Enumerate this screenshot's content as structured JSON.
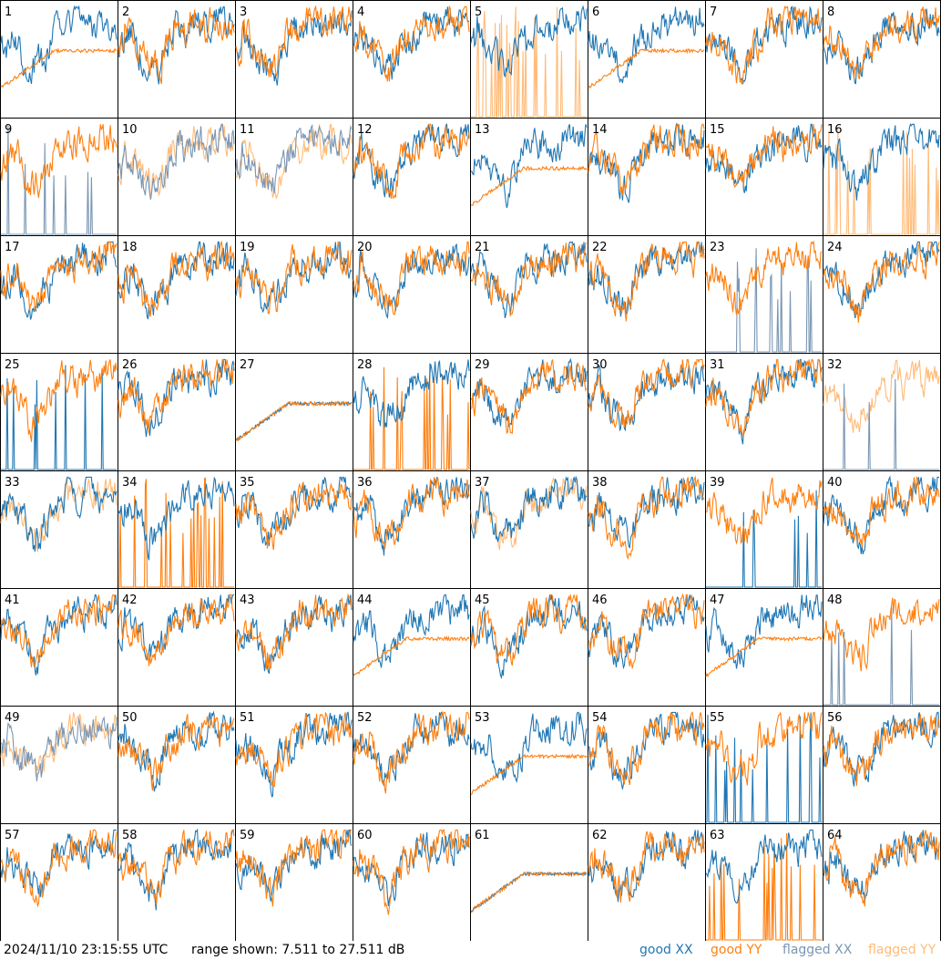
{
  "chart_data": {
    "type": "line",
    "title": "",
    "panel_count": 64,
    "grid": {
      "rows": 8,
      "cols": 8
    },
    "y_range_db": [
      7.511,
      27.511
    ],
    "panels": [
      {
        "n": 1,
        "xx": "good",
        "yy": "good"
      },
      {
        "n": 2,
        "xx": "good",
        "yy": "good"
      },
      {
        "n": 3,
        "xx": "good",
        "yy": "good"
      },
      {
        "n": 4,
        "xx": "good",
        "yy": "good"
      },
      {
        "n": 5,
        "xx": "good",
        "yy": "flagged"
      },
      {
        "n": 6,
        "xx": "good",
        "yy": "good"
      },
      {
        "n": 7,
        "xx": "good",
        "yy": "good"
      },
      {
        "n": 8,
        "xx": "good",
        "yy": "good"
      },
      {
        "n": 9,
        "xx": "flagged",
        "yy": "good"
      },
      {
        "n": 10,
        "xx": "flagged",
        "yy": "flagged"
      },
      {
        "n": 11,
        "xx": "flagged",
        "yy": "flagged"
      },
      {
        "n": 12,
        "xx": "good",
        "yy": "good"
      },
      {
        "n": 13,
        "xx": "good",
        "yy": "good"
      },
      {
        "n": 14,
        "xx": "good",
        "yy": "good"
      },
      {
        "n": 15,
        "xx": "good",
        "yy": "good"
      },
      {
        "n": 16,
        "xx": "good",
        "yy": "flagged"
      },
      {
        "n": 17,
        "xx": "good",
        "yy": "good"
      },
      {
        "n": 18,
        "xx": "good",
        "yy": "good"
      },
      {
        "n": 19,
        "xx": "good",
        "yy": "good"
      },
      {
        "n": 20,
        "xx": "good",
        "yy": "good"
      },
      {
        "n": 21,
        "xx": "good",
        "yy": "good"
      },
      {
        "n": 22,
        "xx": "good",
        "yy": "good"
      },
      {
        "n": 23,
        "xx": "flagged",
        "yy": "good"
      },
      {
        "n": 24,
        "xx": "good",
        "yy": "good"
      },
      {
        "n": 25,
        "xx": "good",
        "yy": "good"
      },
      {
        "n": 26,
        "xx": "good",
        "yy": "good"
      },
      {
        "n": 27,
        "xx": "good",
        "yy": "good"
      },
      {
        "n": 28,
        "xx": "good",
        "yy": "good"
      },
      {
        "n": 29,
        "xx": "good",
        "yy": "good"
      },
      {
        "n": 30,
        "xx": "good",
        "yy": "good"
      },
      {
        "n": 31,
        "xx": "good",
        "yy": "good"
      },
      {
        "n": 32,
        "xx": "flagged",
        "yy": "flagged"
      },
      {
        "n": 33,
        "xx": "good",
        "yy": "flagged"
      },
      {
        "n": 34,
        "xx": "good",
        "yy": "good"
      },
      {
        "n": 35,
        "xx": "good",
        "yy": "good"
      },
      {
        "n": 36,
        "xx": "good",
        "yy": "good"
      },
      {
        "n": 37,
        "xx": "good",
        "yy": "flagged"
      },
      {
        "n": 38,
        "xx": "good",
        "yy": "good"
      },
      {
        "n": 39,
        "xx": "good",
        "yy": "good"
      },
      {
        "n": 40,
        "xx": "good",
        "yy": "good"
      },
      {
        "n": 41,
        "xx": "good",
        "yy": "good"
      },
      {
        "n": 42,
        "xx": "good",
        "yy": "good"
      },
      {
        "n": 43,
        "xx": "good",
        "yy": "good"
      },
      {
        "n": 44,
        "xx": "good",
        "yy": "good"
      },
      {
        "n": 45,
        "xx": "good",
        "yy": "good"
      },
      {
        "n": 46,
        "xx": "good",
        "yy": "good"
      },
      {
        "n": 47,
        "xx": "good",
        "yy": "good"
      },
      {
        "n": 48,
        "xx": "flagged",
        "yy": "good"
      },
      {
        "n": 49,
        "xx": "flagged",
        "yy": "flagged"
      },
      {
        "n": 50,
        "xx": "good",
        "yy": "good"
      },
      {
        "n": 51,
        "xx": "good",
        "yy": "good"
      },
      {
        "n": 52,
        "xx": "good",
        "yy": "good"
      },
      {
        "n": 53,
        "xx": "good",
        "yy": "good"
      },
      {
        "n": 54,
        "xx": "good",
        "yy": "good"
      },
      {
        "n": 55,
        "xx": "good",
        "yy": "good"
      },
      {
        "n": 56,
        "xx": "good",
        "yy": "good"
      },
      {
        "n": 57,
        "xx": "good",
        "yy": "good"
      },
      {
        "n": 58,
        "xx": "good",
        "yy": "good"
      },
      {
        "n": 59,
        "xx": "good",
        "yy": "good"
      },
      {
        "n": 60,
        "xx": "good",
        "yy": "good"
      },
      {
        "n": 61,
        "xx": "good",
        "yy": "good"
      },
      {
        "n": 62,
        "xx": "good",
        "yy": "good"
      },
      {
        "n": 63,
        "xx": "good",
        "yy": "good"
      },
      {
        "n": 64,
        "xx": "good",
        "yy": "good"
      }
    ],
    "legend": [
      {
        "label": "good XX",
        "color": "#1f77b4"
      },
      {
        "label": "good YY",
        "color": "#ff7f0e"
      },
      {
        "label": "flagged XX",
        "color": "#7a96b3"
      },
      {
        "label": "flagged YY",
        "color": "#ffbb78"
      }
    ]
  },
  "footer": {
    "timestamp": "2024/11/10 23:15:55 UTC",
    "range": "range shown: 7.511 to 27.511 dB",
    "legend_good_xx": "good XX",
    "legend_good_yy": "good YY",
    "legend_flagged_xx": "flagged XX",
    "legend_flagged_yy": "flagged YY"
  },
  "colors": {
    "good_xx": "#1f77b4",
    "good_yy": "#ff7f0e",
    "flagged_xx": "#7a96b3",
    "flagged_yy": "#ffbb78"
  }
}
